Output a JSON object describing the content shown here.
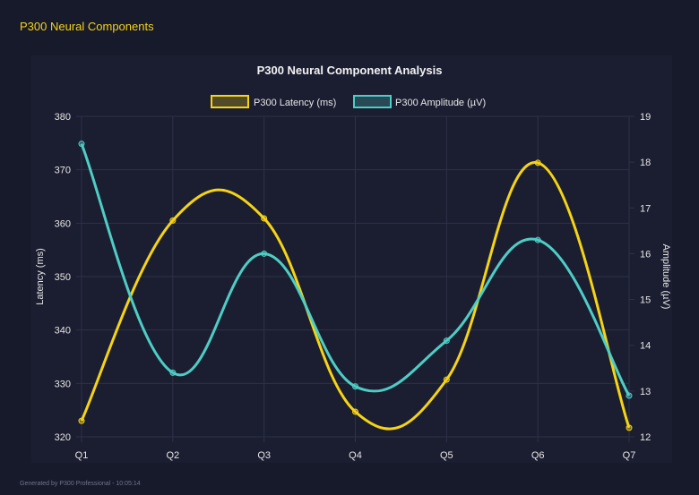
{
  "header": {
    "title": "P300 Neural Components"
  },
  "footer": {
    "text": "Generated by P300 Professional - 10:05:14"
  },
  "chart_data": {
    "type": "line",
    "title": "P300 Neural Component Analysis",
    "categories": [
      "Q1",
      "Q2",
      "Q3",
      "Q4",
      "Q5",
      "Q6",
      "Q7"
    ],
    "legend_position": "top",
    "grid": true,
    "y_left": {
      "label": "Latency (ms)",
      "range": [
        320,
        380
      ],
      "ticks": [
        "320",
        "330",
        "340",
        "350",
        "360",
        "370",
        "380"
      ]
    },
    "y_right": {
      "label": "Amplitude (µV)",
      "range": [
        12,
        19
      ],
      "ticks": [
        "12",
        "13",
        "14",
        "15",
        "16",
        "17",
        "18",
        "19"
      ]
    },
    "series": [
      {
        "name": "P300 Latency (ms)",
        "axis": "left",
        "color": "#f5d316",
        "values": [
          323.0,
          360.5,
          360.9,
          324.7,
          330.7,
          371.3,
          321.7
        ]
      },
      {
        "name": "P300 Amplitude (µV)",
        "axis": "right",
        "color": "#4ecdc4",
        "values": [
          18.4,
          13.4,
          16.0,
          13.1,
          14.1,
          16.3,
          12.9
        ]
      }
    ]
  }
}
